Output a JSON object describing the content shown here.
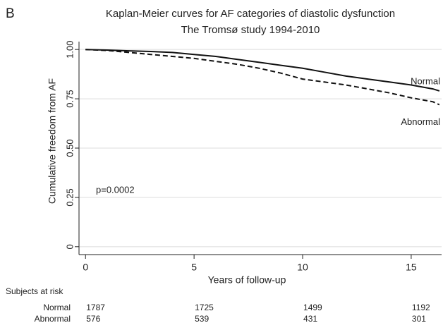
{
  "panel_label": "B",
  "chart_data": {
    "type": "line",
    "title": "Kaplan-Meier curves for AF categories of diastolic dysfunction",
    "subtitle": "The Tromsø study 1994-2010",
    "x_label": "Years of follow-up",
    "y_label": "Cumulative freedom from AF",
    "annotation": "p=0.0002",
    "x": [
      0,
      1,
      2,
      3,
      4,
      5,
      6,
      7,
      8,
      9,
      10,
      11,
      12,
      13,
      14,
      15,
      16,
      16.3
    ],
    "series": [
      {
        "name": "Normal",
        "color": "#111111",
        "style": "solid",
        "values": [
          1.0,
          0.997,
          0.993,
          0.99,
          0.985,
          0.975,
          0.965,
          0.95,
          0.935,
          0.92,
          0.905,
          0.885,
          0.865,
          0.85,
          0.835,
          0.82,
          0.8,
          0.79
        ]
      },
      {
        "name": "Abnormal",
        "color": "#111111",
        "style": "dashed",
        "values": [
          1.0,
          0.995,
          0.985,
          0.975,
          0.965,
          0.955,
          0.94,
          0.925,
          0.905,
          0.88,
          0.85,
          0.835,
          0.82,
          0.8,
          0.78,
          0.755,
          0.735,
          0.72
        ]
      }
    ],
    "xlim": [
      -0.3,
      16.4
    ],
    "xticks": [
      0,
      5,
      10,
      15
    ],
    "ylim": [
      -0.04,
      1.04
    ],
    "yticks": [
      0,
      {
        "value": 0.25,
        "label": "0.25"
      },
      {
        "value": 0.5,
        "label": "0.50"
      },
      {
        "value": 0.75,
        "label": "0.75"
      },
      {
        "value": 1,
        "label": "1.00"
      }
    ],
    "grid": true,
    "risk_table": {
      "title": "Subjects at risk",
      "rows": [
        {
          "label": "Normal",
          "counts": [
            "1787",
            "1725",
            "1499",
            "1192"
          ]
        },
        {
          "label": "Abnormal",
          "counts": [
            "576",
            "539",
            "431",
            "301"
          ]
        }
      ]
    }
  }
}
